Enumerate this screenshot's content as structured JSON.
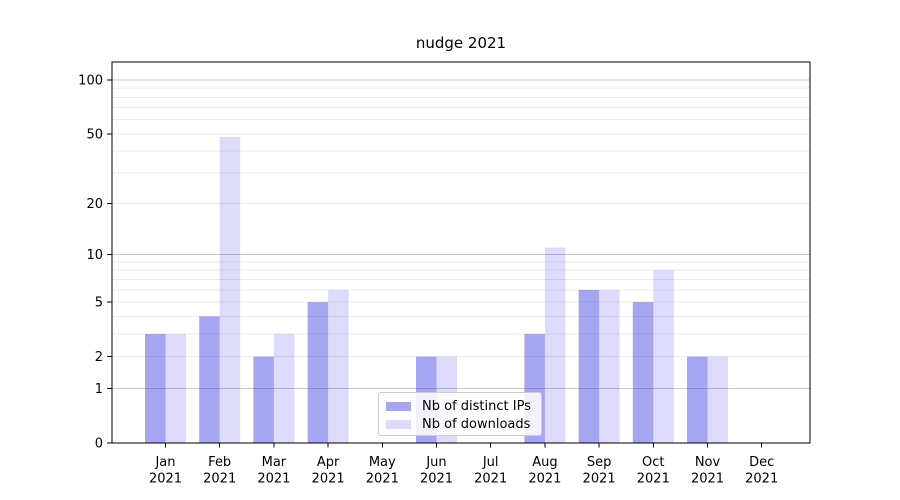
{
  "title": "nudge 2021",
  "chart_data": {
    "type": "bar",
    "title": "nudge 2021",
    "categories": [
      "Jan 2021",
      "Feb 2021",
      "Mar 2021",
      "Apr 2021",
      "May 2021",
      "Jun 2021",
      "Jul 2021",
      "Aug 2021",
      "Sep 2021",
      "Oct 2021",
      "Nov 2021",
      "Dec 2021"
    ],
    "months": [
      "Jan",
      "Feb",
      "Mar",
      "Apr",
      "May",
      "Jun",
      "Jul",
      "Aug",
      "Sep",
      "Oct",
      "Nov",
      "Dec"
    ],
    "year_label": "2021",
    "series": [
      {
        "name": "Nb of distinct IPs",
        "color": "#a5a5f0",
        "fill_rgba": "rgba(55,55,222,0.45)",
        "values": [
          3,
          4,
          2,
          5,
          0,
          2,
          0,
          3,
          6,
          5,
          2,
          0
        ]
      },
      {
        "name": "Nb of downloads",
        "color": "#dcdcfa",
        "fill_rgba": "rgba(22,22,222,0.15)",
        "values": [
          3,
          48,
          3,
          6,
          0,
          2,
          0,
          11,
          6,
          8,
          2,
          0
        ]
      }
    ],
    "xlabel": "",
    "ylabel": "",
    "y_scale": "log10(1+value)",
    "ylim": [
      0,
      126
    ],
    "y_ticks": [
      0,
      1,
      2,
      5,
      10,
      20,
      50,
      100
    ],
    "grid": {
      "major_values": [
        1,
        10,
        100
      ],
      "minor_values": [
        2,
        3,
        4,
        5,
        6,
        7,
        8,
        9,
        20,
        30,
        40,
        50,
        60,
        70,
        80,
        90
      ]
    },
    "legend_position": "lower-center",
    "colors": {
      "grid_major": "#c8c8c8",
      "grid_minor": "#ebebeb",
      "axis": "#000000",
      "text": "#000000",
      "legend_border": "#cccccc",
      "background": "#ffffff"
    }
  }
}
